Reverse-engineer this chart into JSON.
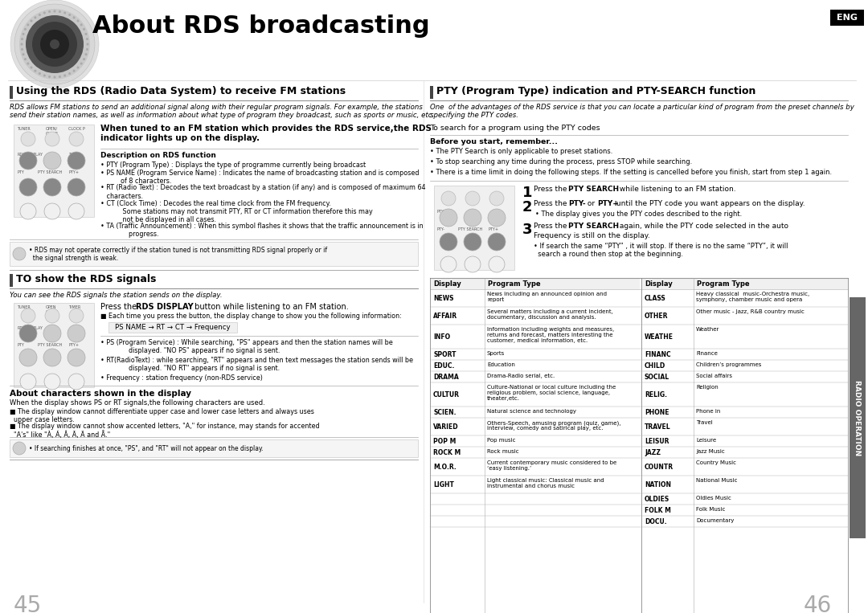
{
  "bg_color": "#ffffff",
  "title": "About RDS broadcasting",
  "left_section1_title": "Using the RDS (Radio Data System) to receive FM stations",
  "left_section2_title": "TO show the RDS signals",
  "right_section1_title": "PTY (Program Type) indication and PTY-SEARCH function",
  "page_left": "45",
  "page_right": "46",
  "radio_operation_label": "RADIO OPERATION",
  "left_italic_text1_l1": "RDS allows FM stations to send an additional signal along with their regular program signals. For example, the stations",
  "left_italic_text1_l2": "send their station names, as well as information about what type of program they broadcast, such as sports or music, etc.",
  "bold_text1": "When tuned to an FM station which provides the RDS service,the RDS\nindicator lights up on the display.",
  "desc_title": "Description on RDS function",
  "desc_items": [
    "• PTY (Program Type) : Displays the type of programme currently being broadcast",
    "• PS NAME (Program Service Name) : Indicates the name of broadcasting station and is composed\n          of 8 characters.",
    "• RT (Radio Text) : Decodes the text broadcast by a station (if any) and is composed of maximum 64\n   characters.",
    "• CT (Clock Time) : Decodes the real time clock from the FM frequency.\n           Some stations may not transmit PTY, RT or CT information therefore this may\n           not be displayed in all cases.",
    "• TA (Traffic Announcement) : When this symbol flashes it shows that the traffic announcement is in\n              progress."
  ],
  "note1": "• RDS may not operate correctly if the station tuned is not transmitting RDS signal properly or if\n  the signal strength is weak.",
  "left_italic2": "You can see the RDS signals the station sends on the display.",
  "press_rds_display": "Press the RDS DISPLAY button while listening to an FM station.",
  "each_time": "■ Each time you press the button, the display change to show you the following information:",
  "ps_name_seq": "PS NAME → RT → CT → Frequency",
  "ps_text": "• PS (Program Service) : While searching, \"PS\" appears and then the station names will be\n              displayed. \"NO PS\" appears if no signal is sent.",
  "rt_text": "• RT(RadioText) : while searching, \"RT\" appears and then text messages the station sends will be\n              displayed. \"NO RT\" appears if no signal is sent.",
  "freq_text": "• Frequency : station frequency (non-RDS service)",
  "about_chars_title": "About characters shown in the display",
  "about_chars_sub": "When the display shows PS or RT signals,the following characters are used.",
  "char_item1": "■ The display window cannot differentiate upper case and lower case letters and always uses\n  upper case letters.",
  "char_item2": "■ The display window cannot show accented letters, \"A,\" for instance, may stands for accented\n  \"A's\" like \"À, Á, Â, Ã, Ä and Å.\"",
  "note2": "• If searching finishes at once, \"PS\", and \"RT\" will not appear on the display.",
  "right_italic_l1": "One  of the advantages of the RDS service is that you can locate a particular kind of program from the preset channels by",
  "right_italic_l2": "specifying the PTY codes.",
  "pty_search_text": "To search for a program using the PTY codes",
  "before_start": "Before you start, remember...",
  "before_items": [
    "• The PTY Search is only applicable to preset stations.",
    "• To stop searching any time during the process, press STOP while searching.",
    "• There is a time limit in doing the following steps. If the setting is cancelled before you finish, start from step 1 again."
  ],
  "step2_sub": "• The display gives you the PTY codes described to the right.",
  "step3_sub1": "• If search the same “PTY” , it will stop. If there is no the same “PTY”, it will",
  "step3_sub2": "  search a round then stop at the beginning.",
  "table_headers": [
    "Display",
    "Program Type",
    "Display",
    "Program Type"
  ],
  "table_left": [
    [
      "NEWS",
      "News including an announced opinion and\nreport"
    ],
    [
      "AFFAIR",
      "Several matters including a current incident,\ndocumentary, discussion and analysis."
    ],
    [
      "INFO",
      "Information including weights and measures,\nreturns and forecast, matters interesting the\ncustomer, medical information, etc."
    ],
    [
      "SPORT",
      "Sports"
    ],
    [
      "EDUC.",
      "Education"
    ],
    [
      "DRAMA",
      "Drama-Radio serial, etc."
    ],
    [
      "CULTUR",
      "Culture-National or local culture including the\nreligious problem, social science, language,\ntheater,etc."
    ],
    [
      "SCIEN.",
      "Natural science and technology"
    ],
    [
      "VARIED",
      "Others-Speech, amusing program (quiz, game),\ninterview, comedy and satirical play, etc."
    ],
    [
      "POP M",
      "Pop music"
    ],
    [
      "ROCK M",
      "Rock music"
    ],
    [
      "M.O.R.",
      "Current contemporary music considered to be\n‘easy listening.’"
    ],
    [
      "LIGHT",
      "Light classical music: Classical music and\ninstrumental and chorus music"
    ]
  ],
  "table_right": [
    [
      "CLASS",
      "Heavy classical  music-Orchestra music,\nsymphony, chamber music and opera"
    ],
    [
      "OTHER",
      "Other music - Jazz, R&B country music"
    ],
    [
      "WEATHE",
      "Weather"
    ],
    [
      "FINANC",
      "Finance"
    ],
    [
      "CHILD",
      "Children’s programmes"
    ],
    [
      "SOCIAL",
      "Social affairs"
    ],
    [
      "RELIG.",
      "Religion"
    ],
    [
      "PHONE",
      "Phone in"
    ],
    [
      "TRAVEL",
      "Travel"
    ],
    [
      "LEISUR",
      "Leisure"
    ],
    [
      "JAZZ",
      "Jazz Music"
    ],
    [
      "COUNTR",
      "Country Music"
    ],
    [
      "NATION",
      "National Music"
    ],
    [
      "OLDIES",
      "Oldies Music"
    ],
    [
      "FOLK M",
      "Folk Music"
    ],
    [
      "DOCU.",
      "Documentary"
    ]
  ]
}
